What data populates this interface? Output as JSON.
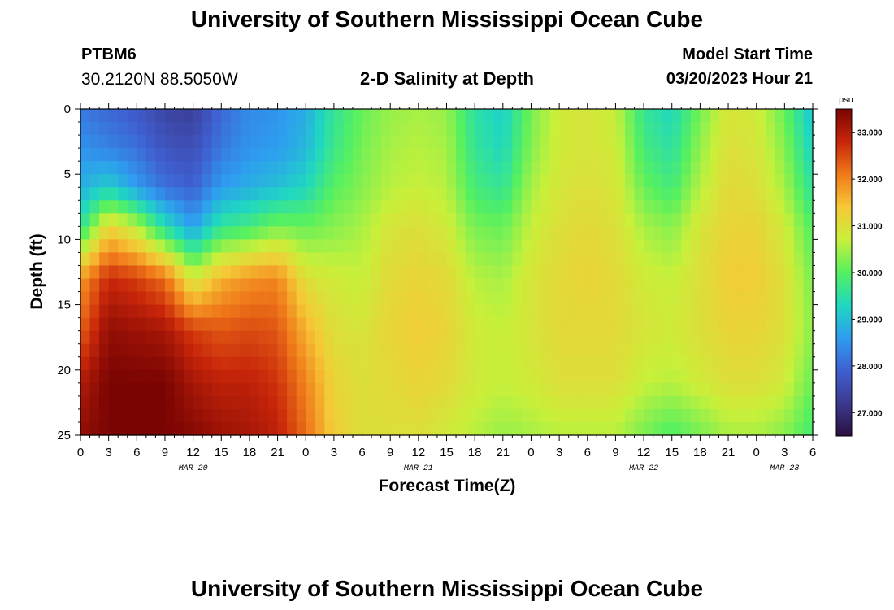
{
  "header": {
    "title": "University of Southern Mississippi Ocean Cube",
    "station_id": "PTBM6",
    "coords": "30.2120N  88.5050W",
    "chart_title": "2-D Salinity at Depth",
    "model_label": "Model Start Time",
    "model_time": "03/20/2023 Hour 21"
  },
  "footer": {
    "title": "University of Southern Mississippi Ocean Cube"
  },
  "chart_data": {
    "type": "heatmap",
    "title": "2-D Salinity at Depth",
    "xlabel": "Forecast Time(Z)",
    "ylabel": "Depth (ft)",
    "x_range_hours": [
      0,
      78
    ],
    "y_range": [
      0,
      25
    ],
    "x_tick_labels": [
      "0",
      "3",
      "6",
      "9",
      "12",
      "15",
      "18",
      "21",
      "0",
      "3",
      "6",
      "9",
      "12",
      "15",
      "18",
      "21",
      "0",
      "3",
      "6",
      "9",
      "12",
      "15",
      "18",
      "21",
      "0",
      "3",
      "6"
    ],
    "y_ticks": [
      0,
      5,
      10,
      15,
      20,
      25
    ],
    "date_labels": [
      {
        "label": "MAR 20",
        "hour": 12
      },
      {
        "label": "MAR 21",
        "hour": 36
      },
      {
        "label": "MAR 22",
        "hour": 60
      },
      {
        "label": "MAR 23",
        "hour": 75
      }
    ],
    "colorbar": {
      "unit": "psu",
      "min": 26.5,
      "max": 33.5,
      "ticks": [
        "27.000",
        "28.000",
        "29.000",
        "30.000",
        "31.000",
        "32.000",
        "33.000"
      ],
      "colors": [
        "#2b0f3f",
        "#3b3a8f",
        "#3f5fd0",
        "#2e9df0",
        "#1fd8c0",
        "#55f060",
        "#c8f03a",
        "#f6c836",
        "#f07a1a",
        "#c8260a",
        "#7a0403"
      ]
    },
    "salinity_columns": [
      {
        "hour": 0,
        "values": [
          28.2,
          28.5,
          28.8,
          29.5,
          31.8,
          32.3,
          33.0,
          33.3
        ]
      },
      {
        "hour": 3,
        "values": [
          28.0,
          28.3,
          29.2,
          31.2,
          32.8,
          33.3,
          33.5,
          33.5
        ]
      },
      {
        "hour": 6,
        "values": [
          27.8,
          28.1,
          28.6,
          30.6,
          32.6,
          33.2,
          33.5,
          33.5
        ]
      },
      {
        "hour": 9,
        "values": [
          27.4,
          27.7,
          28.1,
          29.4,
          32.2,
          33.1,
          33.5,
          33.5
        ]
      },
      {
        "hour": 12,
        "values": [
          27.3,
          27.6,
          27.9,
          28.6,
          30.8,
          32.6,
          33.1,
          33.4
        ]
      },
      {
        "hour": 15,
        "values": [
          28.0,
          28.2,
          28.6,
          29.6,
          31.6,
          32.4,
          32.9,
          33.2
        ]
      },
      {
        "hour": 18,
        "values": [
          28.4,
          28.5,
          28.8,
          29.8,
          31.9,
          32.5,
          32.9,
          33.1
        ]
      },
      {
        "hour": 21,
        "values": [
          28.5,
          28.6,
          29.0,
          30.2,
          32.0,
          32.4,
          32.7,
          32.9
        ]
      },
      {
        "hour": 24,
        "values": [
          28.8,
          28.9,
          29.3,
          30.1,
          31.0,
          31.6,
          32.0,
          32.2
        ]
      },
      {
        "hour": 27,
        "values": [
          29.6,
          29.7,
          30.0,
          30.3,
          30.8,
          31.0,
          31.2,
          31.3
        ]
      },
      {
        "hour": 30,
        "values": [
          30.1,
          30.2,
          30.3,
          30.5,
          30.7,
          30.9,
          31.0,
          31.0
        ]
      },
      {
        "hour": 33,
        "values": [
          30.4,
          30.5,
          30.6,
          30.9,
          31.1,
          31.2,
          31.1,
          31.0
        ]
      },
      {
        "hour": 36,
        "values": [
          30.5,
          30.6,
          30.7,
          31.0,
          31.2,
          31.3,
          31.2,
          31.0
        ]
      },
      {
        "hour": 39,
        "values": [
          30.4,
          30.5,
          30.6,
          30.8,
          31.1,
          31.2,
          31.1,
          30.8
        ]
      },
      {
        "hour": 42,
        "values": [
          29.5,
          29.6,
          29.8,
          30.2,
          30.6,
          30.8,
          30.8,
          30.6
        ]
      },
      {
        "hour": 45,
        "values": [
          29.2,
          29.3,
          29.6,
          30.1,
          30.5,
          30.7,
          30.7,
          30.4
        ]
      },
      {
        "hour": 48,
        "values": [
          30.2,
          30.3,
          30.5,
          30.7,
          30.9,
          30.9,
          30.8,
          30.5
        ]
      },
      {
        "hour": 51,
        "values": [
          30.8,
          30.8,
          30.9,
          31.0,
          31.1,
          31.1,
          31.0,
          30.6
        ]
      },
      {
        "hour": 54,
        "values": [
          30.9,
          30.9,
          31.0,
          31.1,
          31.2,
          31.1,
          31.0,
          30.6
        ]
      },
      {
        "hour": 57,
        "values": [
          30.7,
          30.8,
          30.9,
          31.0,
          31.1,
          31.1,
          31.0,
          30.6
        ]
      },
      {
        "hour": 60,
        "values": [
          29.6,
          29.8,
          30.1,
          30.5,
          30.8,
          30.9,
          30.7,
          30.2
        ]
      },
      {
        "hour": 63,
        "values": [
          29.3,
          29.5,
          29.8,
          30.3,
          30.7,
          30.8,
          30.6,
          29.9
        ]
      },
      {
        "hour": 66,
        "values": [
          30.2,
          30.4,
          30.6,
          30.9,
          31.0,
          31.0,
          30.8,
          30.2
        ]
      },
      {
        "hour": 69,
        "values": [
          30.9,
          31.0,
          31.1,
          31.2,
          31.3,
          31.2,
          31.0,
          30.5
        ]
      },
      {
        "hour": 72,
        "values": [
          30.8,
          30.9,
          31.0,
          31.2,
          31.3,
          31.2,
          31.0,
          30.5
        ]
      },
      {
        "hour": 75,
        "values": [
          30.1,
          30.3,
          30.5,
          30.8,
          31.0,
          31.0,
          30.8,
          30.3
        ]
      },
      {
        "hour": 78,
        "values": [
          29.0,
          29.2,
          29.5,
          29.9,
          30.2,
          30.3,
          30.1,
          29.8
        ]
      }
    ],
    "depth_levels": [
      0,
      3,
      6,
      9,
      13,
      17,
      21,
      25
    ]
  }
}
